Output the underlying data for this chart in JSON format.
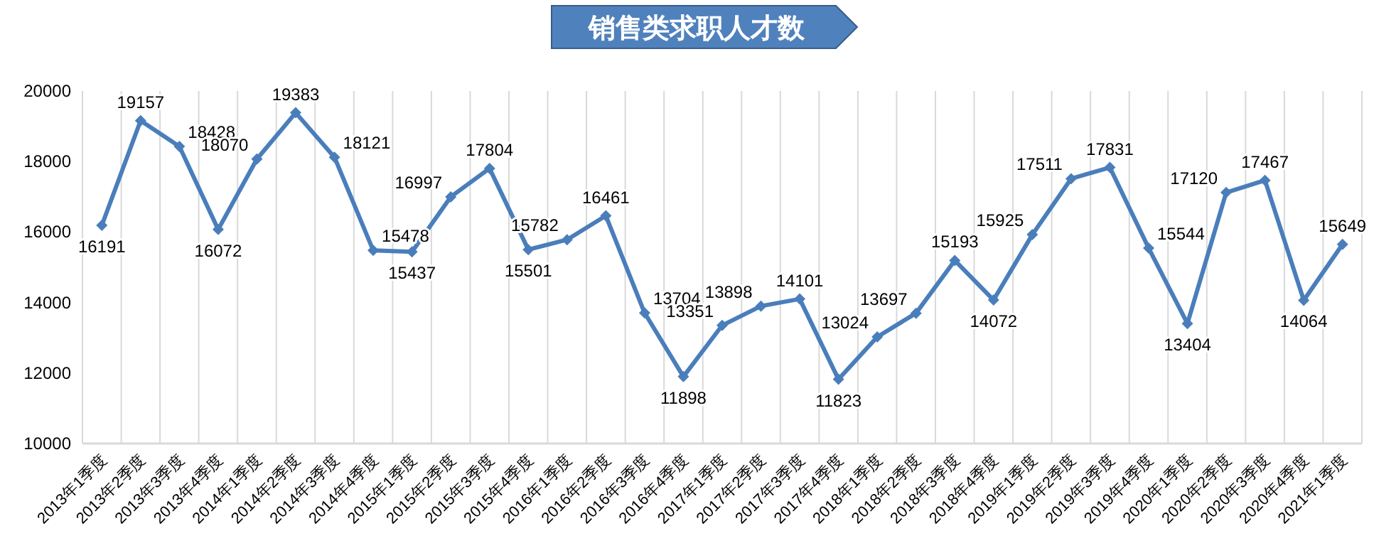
{
  "chart_data": {
    "type": "line",
    "title": "销售类求职人才数",
    "categories": [
      "2013年1季度",
      "2013年2季度",
      "2013年3季度",
      "2013年4季度",
      "2014年1季度",
      "2014年2季度",
      "2014年3季度",
      "2014年4季度",
      "2015年1季度",
      "2015年2季度",
      "2015年3季度",
      "2015年4季度",
      "2016年1季度",
      "2016年2季度",
      "2016年3季度",
      "2016年4季度",
      "2017年1季度",
      "2017年2季度",
      "2017年3季度",
      "2017年4季度",
      "2018年1季度",
      "2018年2季度",
      "2018年3季度",
      "2018年4季度",
      "2019年1季度",
      "2019年2季度",
      "2019年3季度",
      "2019年4季度",
      "2020年1季度",
      "2020年2季度",
      "2020年3季度",
      "2020年4季度",
      "2021年1季度"
    ],
    "values": [
      16191,
      19157,
      18428,
      16072,
      18070,
      19383,
      18121,
      15478,
      15437,
      16997,
      17804,
      15501,
      15782,
      16461,
      13704,
      11898,
      13351,
      13898,
      14101,
      11823,
      13024,
      13697,
      15193,
      14072,
      15925,
      17511,
      17831,
      15544,
      13404,
      17120,
      17467,
      14064,
      15649
    ],
    "color": "#4a7ebb",
    "marker": "diamond",
    "data_labels": true,
    "grid": "x",
    "ylim": [
      10000,
      20000
    ],
    "yticks": [
      10000,
      12000,
      14000,
      16000,
      18000,
      20000
    ]
  }
}
